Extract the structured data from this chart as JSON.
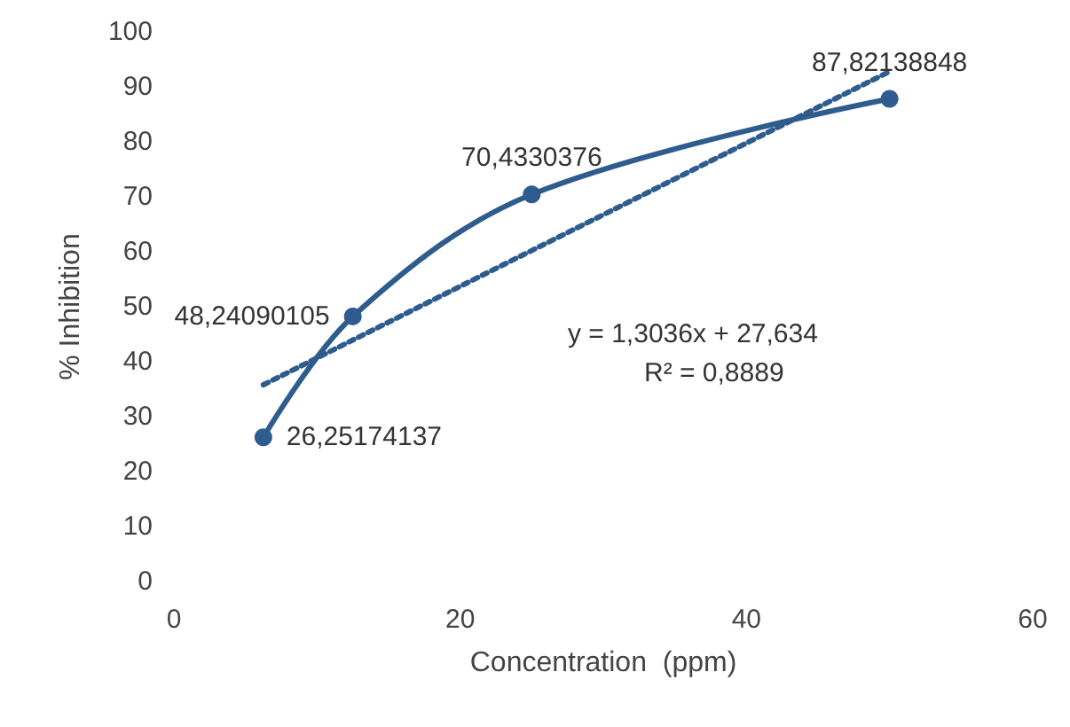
{
  "chart_data": {
    "type": "line",
    "xlabel": "Concentration  (ppm)",
    "ylabel": "% Inhibition",
    "xlim": [
      0,
      60
    ],
    "xticks": [
      0,
      20,
      40,
      60
    ],
    "ylim": [
      0,
      100
    ],
    "yticks": [
      0,
      10,
      20,
      30,
      40,
      50,
      60,
      70,
      80,
      90,
      100
    ],
    "grid": false,
    "series": [
      {
        "color": "#2e5c8f",
        "marker": "circle",
        "line_style": "solid",
        "x": [
          6.25,
          12.5,
          25,
          50
        ],
        "values": [
          26.25174137,
          48.24090105,
          70.4330376,
          87.82138848
        ],
        "value_labels": [
          "26,25174137",
          "48,24090105",
          "70,4330376",
          "87,82138848"
        ]
      },
      {
        "color": "#2e5c8f",
        "marker": "none",
        "line_style": "dotted",
        "x": [
          6.25,
          50
        ],
        "values": [
          35.8,
          92.8
        ]
      }
    ],
    "annotations": [
      "y = 1,3036x + 27,634",
      "R² = 0,8889"
    ]
  }
}
